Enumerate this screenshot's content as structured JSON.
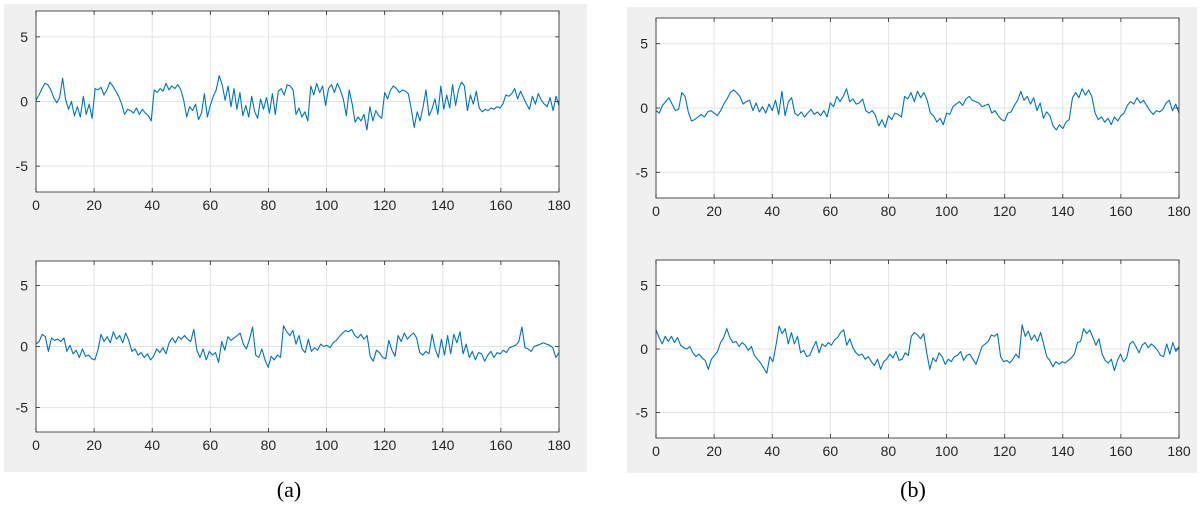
{
  "panels": [
    {
      "id": "a",
      "caption": "(a)"
    },
    {
      "id": "b",
      "caption": "(b)"
    }
  ],
  "chart_data": [
    {
      "panel": "a",
      "position": "top",
      "type": "line",
      "xlim": [
        0,
        180
      ],
      "ylim": [
        -7,
        7
      ],
      "xticks": [
        0,
        20,
        40,
        60,
        80,
        100,
        120,
        140,
        160,
        180
      ],
      "yticks": [
        5,
        0,
        -5
      ],
      "grid": true,
      "line_color": "#0072bd",
      "series": [
        {
          "values": [
            0.1,
            0.5,
            1.0,
            1.4,
            1.3,
            0.9,
            0.3,
            -0.1,
            0.3,
            1.8,
            0.2,
            -0.6,
            0.0,
            -1.1,
            -0.4,
            -1.2,
            0.4,
            -1.0,
            -0.2,
            -1.3,
            1.0,
            0.9,
            1.1,
            0.5,
            0.9,
            1.5,
            1.2,
            0.8,
            0.4,
            -0.2,
            -1.0,
            -0.6,
            -0.7,
            -0.9,
            -0.5,
            -1.0,
            -0.6,
            -0.9,
            -1.1,
            -1.5,
            0.9,
            0.7,
            1.0,
            0.8,
            1.4,
            0.9,
            1.2,
            1.0,
            1.3,
            0.9,
            0.1,
            -1.2,
            -0.4,
            -0.7,
            -0.2,
            -1.4,
            -0.9,
            0.6,
            -1.2,
            -0.3,
            0.4,
            0.9,
            2.0,
            1.3,
            0.1,
            1.2,
            -0.4,
            1.0,
            -0.6,
            0.7,
            -1.1,
            -0.3,
            -1.2,
            0.4,
            -0.8,
            -1.3,
            0.2,
            -0.6,
            0.3,
            -0.9,
            0.6,
            -1.0,
            0.8,
            1.0,
            0.5,
            1.3,
            1.2,
            0.9,
            -1.0,
            -0.5,
            -1.2,
            -0.8,
            -1.5,
            1.2,
            0.5,
            1.4,
            0.7,
            1.2,
            -0.3,
            1.0,
            1.3,
            0.7,
            1.4,
            0.9,
            0.2,
            -1.1,
            0.9,
            -0.2,
            -1.6,
            -1.2,
            -1.5,
            -1.0,
            -2.2,
            -0.4,
            -1.5,
            -0.7,
            -1.1,
            -1.3,
            0.7,
            0.2,
            0.9,
            1.2,
            1.0,
            0.7,
            0.9,
            0.8,
            0.6,
            -0.6,
            -2.0,
            -0.8,
            -1.5,
            -0.4,
            0.9,
            -1.1,
            -0.6,
            0.2,
            -1.0,
            1.2,
            -0.6,
            0.5,
            -0.5,
            1.3,
            -0.3,
            0.9,
            1.5,
            1.2,
            -0.7,
            0.5,
            -0.2,
            0.8,
            -0.5,
            -0.8,
            -0.6,
            -0.7,
            -0.5,
            -0.6,
            -0.4,
            -0.5,
            -0.2,
            0.5,
            0.4,
            0.6,
            1.0,
            0.2,
            0.8,
            0.3,
            -0.2,
            -0.6,
            0.4,
            -0.2,
            0.6,
            0.1,
            -0.2,
            -0.4,
            0.3,
            -0.7,
            0.4,
            -0.3
          ]
        }
      ]
    },
    {
      "panel": "a",
      "position": "bottom",
      "type": "line",
      "xlim": [
        0,
        180
      ],
      "ylim": [
        -7,
        7
      ],
      "xticks": [
        0,
        20,
        40,
        60,
        80,
        100,
        120,
        140,
        160,
        180
      ],
      "yticks": [
        5,
        0,
        -5
      ],
      "grid": true,
      "line_color": "#0072bd",
      "series": [
        {
          "values": [
            0.2,
            0.4,
            1.0,
            0.8,
            -0.4,
            0.7,
            0.5,
            0.6,
            0.4,
            0.7,
            -0.4,
            0.1,
            -0.6,
            -0.3,
            -0.9,
            -0.2,
            -0.8,
            -0.7,
            -1.0,
            -1.1,
            -0.3,
            1.0,
            0.4,
            0.8,
            0.3,
            1.2,
            0.6,
            0.9,
            0.3,
            1.1,
            0.5,
            -0.4,
            -0.2,
            -0.7,
            -0.5,
            -0.9,
            -0.6,
            -1.1,
            -0.8,
            -0.2,
            -0.5,
            -0.1,
            -0.6,
            0.3,
            0.7,
            0.3,
            0.8,
            0.6,
            0.9,
            0.6,
            0.4,
            1.4,
            -0.3,
            -0.9,
            -0.2,
            -1.1,
            -0.4,
            -0.7,
            -0.5,
            -1.3,
            0.4,
            -0.3,
            0.8,
            0.5,
            0.7,
            0.9,
            1.1,
            0.2,
            -0.2,
            0.6,
            1.6,
            -0.7,
            -0.9,
            -0.2,
            -1.1,
            -1.7,
            -0.8,
            -1.1,
            -0.7,
            -0.9,
            1.7,
            1.2,
            0.9,
            1.3,
            0.2,
            0.9,
            -0.2,
            -0.5,
            0.6,
            -0.4,
            -0.1,
            -0.3,
            0.2,
            0.0,
            0.1,
            -0.1,
            0.3,
            0.5,
            0.8,
            1.1,
            1.3,
            1.2,
            1.4,
            0.9,
            0.7,
            1.0,
            0.6,
            0.9,
            -0.8,
            -1.2,
            -0.3,
            -0.5,
            -0.9,
            -1.0,
            0.5,
            -0.3,
            -0.8,
            0.9,
            0.4,
            1.1,
            0.6,
            0.9,
            1.1,
            0.7,
            -0.5,
            -0.7,
            -0.4,
            -0.6,
            1.0,
            -0.2,
            -0.9,
            0.6,
            -0.7,
            0.9,
            -0.6,
            1.0,
            0.3,
            1.2,
            -0.6,
            0.2,
            -0.9,
            -0.4,
            -1.1,
            -0.5,
            -0.6,
            -1.2,
            -0.7,
            -0.4,
            -0.9,
            -0.5,
            -0.6,
            -0.3,
            -0.5,
            -0.1,
            0.0,
            0.1,
            0.4,
            1.6,
            -0.1,
            -0.2,
            -0.4,
            0.0,
            0.1,
            0.2,
            0.3,
            0.2,
            0.1,
            -0.1,
            -0.9,
            -0.5
          ]
        }
      ]
    },
    {
      "panel": "b",
      "position": "top",
      "type": "line",
      "xlim": [
        0,
        180
      ],
      "ylim": [
        -7,
        7
      ],
      "xticks": [
        0,
        20,
        40,
        60,
        80,
        100,
        120,
        140,
        160,
        180
      ],
      "yticks": [
        5,
        0,
        -5
      ],
      "grid": true,
      "line_color": "#0072bd",
      "series": [
        {
          "values": [
            -0.2,
            -0.4,
            0.2,
            0.5,
            0.8,
            0.3,
            -0.2,
            -0.1,
            1.2,
            0.9,
            -0.3,
            -1.0,
            -0.9,
            -0.7,
            -0.5,
            -0.7,
            -0.3,
            -0.2,
            -0.4,
            -0.6,
            -0.2,
            0.3,
            0.7,
            1.2,
            1.4,
            1.2,
            0.9,
            0.3,
            0.5,
            0.6,
            -0.2,
            0.4,
            -0.3,
            0.1,
            -0.4,
            0.3,
            -0.2,
            0.6,
            -0.5,
            1.3,
            -0.6,
            0.5,
            0.8,
            -0.4,
            -0.6,
            -0.3,
            -0.7,
            -0.4,
            -0.1,
            -0.5,
            -0.3,
            -0.6,
            -0.2,
            -0.7,
            0.4,
            0.1,
            0.9,
            0.5,
            0.9,
            1.5,
            0.5,
            0.7,
            0.3,
            0.4,
            0.7,
            -0.2,
            -0.4,
            -0.2,
            -0.6,
            -1.4,
            -0.9,
            -1.5,
            -0.6,
            -0.9,
            -0.4,
            -0.5,
            -0.7,
            0.9,
            0.7,
            1.2,
            0.5,
            1.3,
            0.8,
            1.2,
            0.6,
            -0.4,
            -0.6,
            -1.1,
            -0.8,
            -1.3,
            -0.4,
            -0.5,
            0.1,
            0.3,
            0.5,
            0.2,
            0.7,
            0.9,
            0.6,
            0.5,
            0.4,
            0.1,
            0.2,
            0.3,
            -0.4,
            -0.2,
            -0.6,
            -0.9,
            -1.0,
            -0.4,
            -0.3,
            0.2,
            0.6,
            1.3,
            0.6,
            0.9,
            0.3,
            0.8,
            -0.2,
            0.4,
            -0.8,
            -0.3,
            -0.6,
            -1.4,
            -1.7,
            -1.3,
            -1.6,
            -1.1,
            -0.9,
            0.8,
            1.2,
            0.8,
            1.5,
            1.0,
            1.4,
            0.9,
            -0.4,
            -0.9,
            -0.7,
            -1.1,
            -0.8,
            -1.3,
            -0.7,
            -1.0,
            -0.6,
            -0.4,
            0.2,
            0.5,
            0.3,
            0.8,
            0.4,
            0.6,
            0.2,
            -0.2,
            -0.5,
            -0.2,
            -0.3,
            -0.1,
            0.4,
            0.6,
            -0.2,
            0.3,
            -0.4
          ]
        }
      ]
    },
    {
      "panel": "b",
      "position": "bottom",
      "type": "line",
      "xlim": [
        0,
        180
      ],
      "ylim": [
        -7,
        7
      ],
      "xticks": [
        0,
        20,
        40,
        60,
        80,
        100,
        120,
        140,
        160,
        180
      ],
      "yticks": [
        5,
        0,
        -5
      ],
      "grid": true,
      "line_color": "#0072bd",
      "series": [
        {
          "values": [
            1.5,
            0.9,
            0.4,
            1.0,
            0.6,
            1.0,
            0.5,
            0.9,
            0.3,
            0.1,
            0.0,
            0.2,
            -0.3,
            -0.6,
            -0.4,
            -0.7,
            -0.9,
            -1.6,
            -0.8,
            -0.5,
            -0.2,
            0.5,
            0.9,
            1.6,
            0.9,
            0.5,
            0.6,
            0.2,
            0.5,
            0.3,
            -0.1,
            0.2,
            -0.5,
            -0.8,
            -1.1,
            -1.5,
            -1.9,
            -0.6,
            -1.0,
            0.3,
            1.8,
            1.2,
            1.6,
            0.4,
            1.3,
            0.4,
            1.0,
            -0.3,
            -0.1,
            -0.6,
            -0.5,
            0.1,
            0.6,
            -0.3,
            0.4,
            0.2,
            0.5,
            0.3,
            0.7,
            0.9,
            1.3,
            1.5,
            0.3,
            0.8,
            0.1,
            -0.3,
            -0.5,
            -0.4,
            -0.8,
            -0.6,
            -1.0,
            -1.3,
            -0.8,
            -1.6,
            -1.0,
            -0.8,
            -0.4,
            -0.7,
            -0.2,
            -0.9,
            -0.8,
            -0.3,
            -0.5,
            1.0,
            1.3,
            1.1,
            0.8,
            1.2,
            -0.3,
            -1.6,
            -0.7,
            -1.0,
            -0.3,
            -0.6,
            -1.2,
            -0.8,
            -1.0,
            -0.6,
            -0.5,
            -0.2,
            -0.9,
            -0.5,
            -0.4,
            -0.8,
            -1.2,
            -0.5,
            0.2,
            0.4,
            0.6,
            1.1,
            1.0,
            1.2,
            -0.6,
            -1.0,
            -0.9,
            -1.1,
            -0.8,
            -0.4,
            -0.7,
            1.9,
            1.0,
            1.4,
            0.7,
            1.1,
            0.6,
            1.3,
            0.4,
            -0.6,
            -0.9,
            -1.4,
            -1.0,
            -1.2,
            -1.0,
            -1.1,
            -0.9,
            -0.7,
            -0.4,
            0.5,
            0.6,
            1.6,
            1.2,
            1.5,
            0.9,
            0.3,
            0.8,
            -0.4,
            -0.9,
            -1.1,
            -0.8,
            -1.7,
            -0.9,
            -0.4,
            -1.0,
            -0.7,
            0.4,
            0.6,
            0.2,
            -0.3,
            0.3,
            0.5,
            0.1,
            0.4,
            0.2,
            -0.1,
            -0.5,
            -0.6,
            0.4,
            -0.4,
            0.5,
            -0.2,
            0.2
          ]
        }
      ]
    }
  ]
}
